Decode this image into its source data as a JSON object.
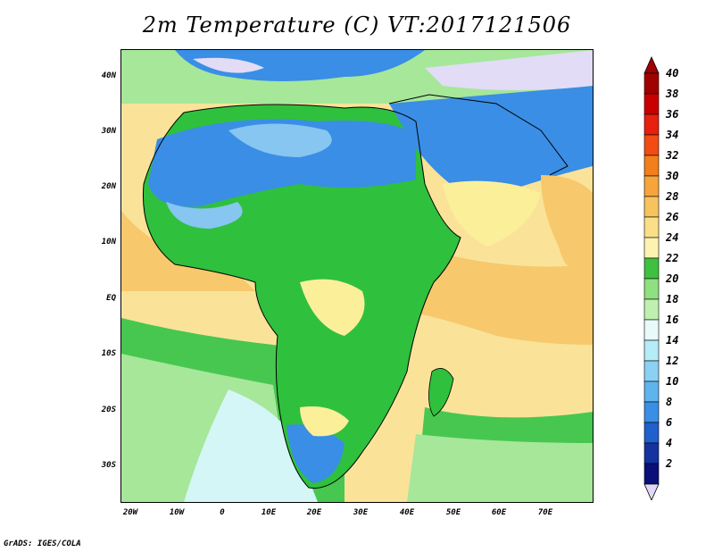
{
  "title": "2m Temperature (C) VT:2017121506",
  "credit": "GrADS: IGES/COLA",
  "axes": {
    "lat_labels": [
      "40N",
      "30N",
      "20N",
      "10N",
      "EQ",
      "10S",
      "20S",
      "30S"
    ],
    "lon_labels": [
      "20W",
      "10W",
      "0",
      "10E",
      "20E",
      "30E",
      "40E",
      "50E",
      "60E",
      "70E"
    ]
  },
  "colorbar": {
    "levels": [
      "40",
      "38",
      "36",
      "34",
      "32",
      "30",
      "28",
      "26",
      "24",
      "22",
      "20",
      "18",
      "16",
      "14",
      "12",
      "10",
      "8",
      "6",
      "4",
      "2"
    ],
    "colors": [
      "#a00000",
      "#c80000",
      "#e8200f",
      "#f24c14",
      "#f37f1a",
      "#f6a53c",
      "#f7c35e",
      "#fadf88",
      "#fdf3b0",
      "#40c040",
      "#8fe080",
      "#c0f0b0",
      "#e8fbf8",
      "#b4ecf8",
      "#8cd0f4",
      "#5fb4ee",
      "#3a8ee6",
      "#2060cc",
      "#1432a0",
      "#0a1078"
    ],
    "top_arrow_color": "#a00000",
    "bottom_arrow_color": "#e0d8f8"
  },
  "palette": {
    "ocean_warm": "#fae398",
    "ocean_mid": "#f7c86c",
    "ocean_cool_green": "#47c750",
    "ocean_light_green": "#a6e79a",
    "ocean_pale": "#d4f6f6",
    "land_green": "#2fc03e",
    "land_blue": "#3a8ee6",
    "land_lightblue": "#86c6f0",
    "land_yellow": "#fbef9a",
    "cold_lavender": "#e2dcf6"
  }
}
